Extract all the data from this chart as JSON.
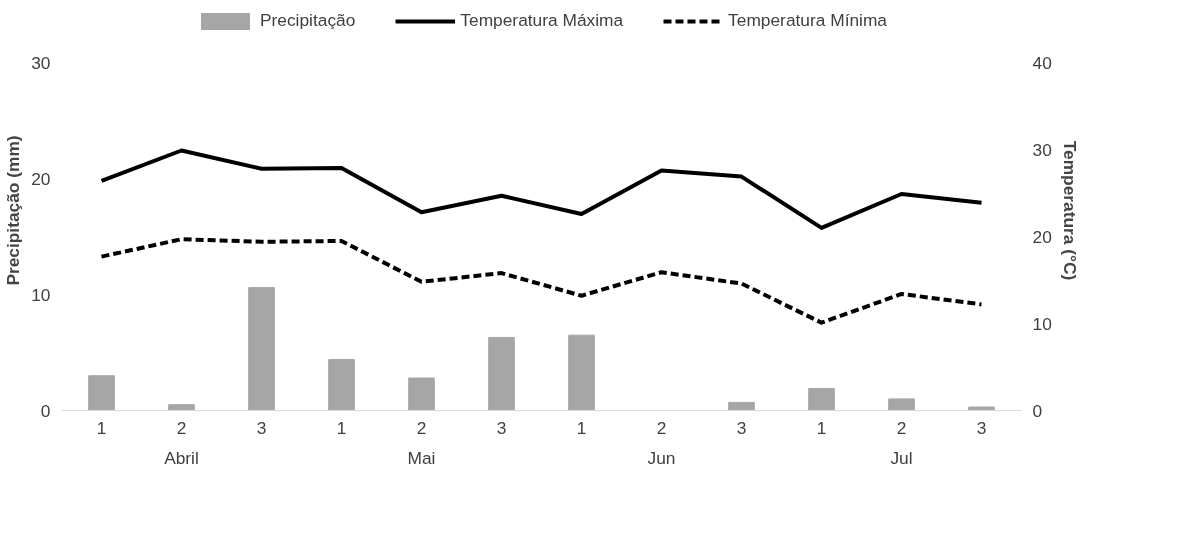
{
  "chart_data": {
    "type": "bar",
    "xlabel": null,
    "ylabel": "Precipitação (mm)",
    "y2label": "Temperatura (°C)",
    "categories": [
      "1",
      "2",
      "3",
      "1",
      "2",
      "3",
      "1",
      "2",
      "3",
      "1",
      "2",
      "3"
    ],
    "annotations": [
      "Abril",
      "Mai",
      "Jun",
      "Jul"
    ],
    "series": [
      {
        "name": "Precipitação",
        "type": "bar",
        "color": "#a6a6a6",
        "values": [
          3.0,
          0.5,
          10.6,
          4.4,
          2.8,
          6.3,
          6.5,
          0,
          0.7,
          1.9,
          1.0,
          0.3
        ]
      },
      {
        "name": "Temperatura Máxima",
        "type": "line",
        "axis": "y2",
        "color": "#000000",
        "line_style": "solid",
        "values": [
          26.4,
          29.9,
          27.8,
          27.9,
          22.8,
          24.7,
          22.6,
          27.6,
          26.9,
          21.0,
          24.9,
          23.9
        ]
      },
      {
        "name": "Temperatura Mínima",
        "type": "line",
        "axis": "y2",
        "color": "#000000",
        "line_style": "dashed",
        "values": [
          17.7,
          19.7,
          19.4,
          19.5,
          14.8,
          15.8,
          13.2,
          15.9,
          14.6,
          10.1,
          13.4,
          12.2
        ]
      }
    ],
    "ylim": [
      0,
      30
    ],
    "yticks": [
      0,
      10,
      20,
      30
    ],
    "y2lim": [
      0,
      40
    ],
    "y2ticks": [
      0,
      10,
      20,
      30,
      40
    ],
    "grid": false,
    "legend": "top"
  }
}
